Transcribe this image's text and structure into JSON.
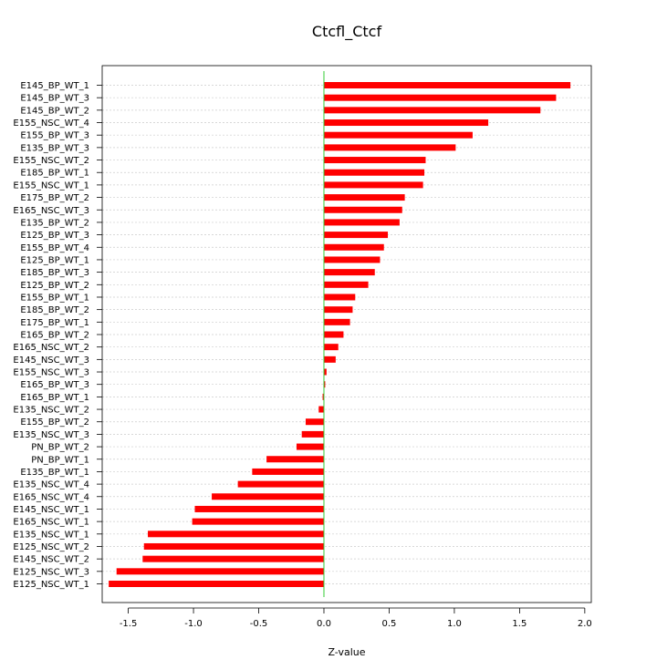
{
  "chart_data": {
    "type": "bar",
    "orientation": "horizontal",
    "title": "Ctcfl_Ctcf",
    "xlabel": "Z-value",
    "ylabel": "",
    "xlim": [
      -1.7,
      2.05
    ],
    "xticks": [
      -1.5,
      -1.0,
      -0.5,
      0.0,
      0.5,
      1.0,
      1.5,
      2.0
    ],
    "xtick_labels": [
      "-1.5",
      "-1.0",
      "-0.5",
      "0.0",
      "0.5",
      "1.0",
      "1.5",
      "2.0"
    ],
    "grid": true,
    "zero_line": true,
    "colors": {
      "bar": "#ff0000",
      "zero_line": "#33cc33",
      "grid": "#cccccc",
      "axis": "#000000"
    },
    "categories": [
      "E145_BP_WT_1",
      "E145_BP_WT_3",
      "E145_BP_WT_2",
      "E155_NSC_WT_4",
      "E155_BP_WT_3",
      "E135_BP_WT_3",
      "E155_NSC_WT_2",
      "E185_BP_WT_1",
      "E155_NSC_WT_1",
      "E175_BP_WT_2",
      "E165_NSC_WT_3",
      "E135_BP_WT_2",
      "E125_BP_WT_3",
      "E155_BP_WT_4",
      "E125_BP_WT_1",
      "E185_BP_WT_3",
      "E125_BP_WT_2",
      "E155_BP_WT_1",
      "E185_BP_WT_2",
      "E175_BP_WT_1",
      "E165_BP_WT_2",
      "E165_NSC_WT_2",
      "E145_NSC_WT_3",
      "E155_NSC_WT_3",
      "E165_BP_WT_3",
      "E165_BP_WT_1",
      "E135_NSC_WT_2",
      "E155_BP_WT_2",
      "E135_NSC_WT_3",
      "PN_BP_WT_2",
      "PN_BP_WT_1",
      "E135_BP_WT_1",
      "E135_NSC_WT_4",
      "E165_NSC_WT_4",
      "E145_NSC_WT_1",
      "E165_NSC_WT_1",
      "E135_NSC_WT_1",
      "E125_NSC_WT_2",
      "E145_NSC_WT_2",
      "E125_NSC_WT_3",
      "E125_NSC_WT_1"
    ],
    "values": [
      1.89,
      1.78,
      1.66,
      1.26,
      1.14,
      1.01,
      0.78,
      0.77,
      0.76,
      0.62,
      0.6,
      0.58,
      0.49,
      0.46,
      0.43,
      0.39,
      0.34,
      0.24,
      0.22,
      0.2,
      0.15,
      0.11,
      0.09,
      0.02,
      0.01,
      -0.01,
      -0.04,
      -0.14,
      -0.17,
      -0.21,
      -0.44,
      -0.55,
      -0.66,
      -0.86,
      -0.99,
      -1.01,
      -1.35,
      -1.38,
      -1.39,
      -1.59,
      -1.65
    ]
  }
}
